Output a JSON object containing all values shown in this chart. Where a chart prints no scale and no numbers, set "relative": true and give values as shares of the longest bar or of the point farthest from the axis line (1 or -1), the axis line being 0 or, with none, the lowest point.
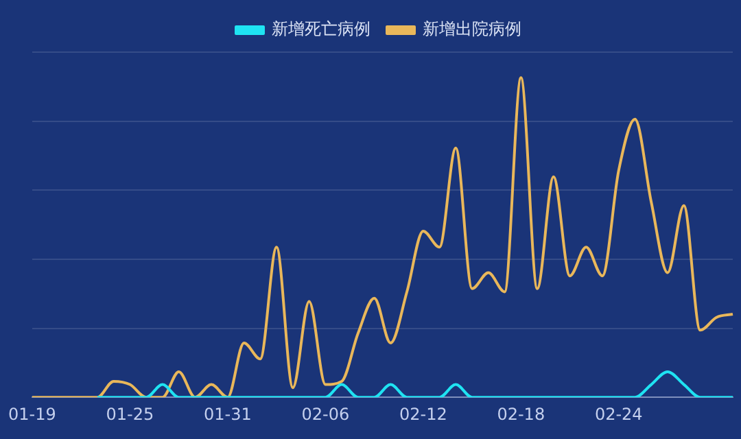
{
  "chart_data": {
    "type": "line",
    "relative": true,
    "grid": "y",
    "legend": "top",
    "marker": "none",
    "line_style": "solid",
    "categories": [
      "01-19",
      null,
      null,
      null,
      null,
      null,
      "01-25",
      null,
      null,
      null,
      null,
      null,
      "01-31",
      null,
      null,
      null,
      null,
      null,
      "02-06",
      null,
      null,
      null,
      null,
      null,
      "02-12",
      null,
      null,
      null,
      null,
      null,
      "02-18",
      null,
      null,
      null,
      null,
      null,
      "02-24",
      null,
      null,
      null,
      null,
      null,
      null,
      null
    ],
    "series": [
      {
        "name": "新增死亡病例",
        "color": "#1fe3f2",
        "values": [
          null,
          null,
          null,
          null,
          0,
          0,
          0,
          0,
          0.04,
          0,
          0,
          0,
          0,
          0,
          0,
          0,
          0,
          0,
          0,
          0.04,
          0,
          0,
          0.04,
          0,
          0,
          0,
          0.04,
          0,
          0,
          0,
          0,
          0,
          0,
          0,
          0,
          0,
          0,
          0,
          0.04,
          0.08,
          0.04,
          0,
          0,
          0
        ]
      },
      {
        "name": "新增出院病例",
        "color": "#e9b75a",
        "values": [
          0,
          0,
          0,
          0,
          0,
          0.05,
          0.04,
          0,
          0,
          0.08,
          0,
          0.04,
          0,
          0.17,
          0.12,
          0.47,
          0.03,
          0.3,
          0.04,
          0.05,
          0.2,
          0.31,
          0.17,
          0.33,
          0.52,
          0.47,
          0.78,
          0.34,
          0.39,
          0.33,
          1,
          0.34,
          0.69,
          0.38,
          0.47,
          0.38,
          0.71,
          0.87,
          0.61,
          0.39,
          0.6,
          0.21,
          0.25,
          0.26
        ]
      }
    ]
  }
}
